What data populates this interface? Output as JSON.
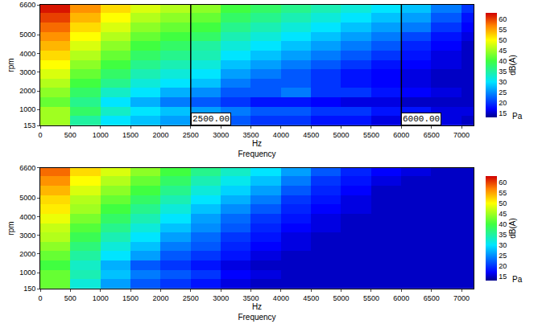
{
  "chart_data": [
    {
      "type": "heatmap",
      "xlabel": "Hz",
      "xlabel_sub": "Frequency",
      "ylabel": "rpm",
      "x": [
        250,
        750,
        1250,
        1750,
        2250,
        2750,
        3250,
        3750,
        4250,
        4750,
        5250,
        5750,
        6250,
        6750,
        7250
      ],
      "y": [
        400,
        900,
        1400,
        1900,
        2400,
        2900,
        3400,
        3900,
        4400,
        4900,
        5400,
        5900,
        6400
      ],
      "z": [
        [
          45,
          35,
          30,
          28,
          26,
          24,
          22,
          20,
          20,
          18,
          18,
          16,
          16,
          16,
          15
        ],
        [
          45,
          38,
          33,
          30,
          28,
          26,
          24,
          22,
          22,
          20,
          20,
          18,
          18,
          16,
          16
        ],
        [
          42,
          36,
          30,
          27,
          24,
          22,
          20,
          18,
          18,
          17,
          16,
          16,
          15,
          15,
          15
        ],
        [
          44,
          38,
          33,
          30,
          27,
          25,
          22,
          22,
          24,
          20,
          20,
          18,
          17,
          16,
          15
        ],
        [
          46,
          40,
          36,
          32,
          30,
          28,
          24,
          22,
          22,
          20,
          18,
          17,
          16,
          15,
          15
        ],
        [
          48,
          42,
          38,
          34,
          32,
          30,
          26,
          24,
          22,
          20,
          18,
          17,
          16,
          15,
          15
        ],
        [
          50,
          44,
          40,
          36,
          34,
          32,
          28,
          26,
          24,
          22,
          20,
          18,
          17,
          16,
          15
        ],
        [
          52,
          46,
          42,
          38,
          36,
          34,
          30,
          28,
          26,
          24,
          22,
          20,
          18,
          16,
          15
        ],
        [
          54,
          48,
          44,
          40,
          38,
          35,
          32,
          30,
          28,
          26,
          24,
          22,
          19,
          17,
          15
        ],
        [
          56,
          50,
          46,
          42,
          40,
          38,
          34,
          32,
          30,
          28,
          26,
          24,
          21,
          18,
          16
        ],
        [
          58,
          52,
          48,
          44,
          42,
          40,
          36,
          34,
          32,
          30,
          28,
          26,
          24,
          20,
          17
        ],
        [
          60,
          54,
          50,
          46,
          44,
          42,
          38,
          36,
          34,
          32,
          30,
          28,
          26,
          22,
          18
        ],
        [
          62,
          56,
          52,
          48,
          46,
          44,
          40,
          38,
          36,
          34,
          32,
          30,
          28,
          24,
          20
        ]
      ],
      "xlim": [
        0,
        7200
      ],
      "ylim": [
        153,
        6600
      ],
      "xticks": [
        0,
        500,
        1000,
        1500,
        2000,
        2500,
        3000,
        3500,
        4000,
        4500,
        5000,
        5500,
        6000,
        6500,
        7000
      ],
      "yticks": [
        153,
        1000,
        2000,
        3000,
        4000,
        5000,
        6600
      ],
      "colorbar": {
        "title": "dB(A)",
        "unit": "Pa",
        "range": [
          13,
          63
        ],
        "ticks": [
          15,
          20,
          25,
          30,
          35,
          40,
          45,
          50,
          55,
          60
        ]
      },
      "annotations": [
        {
          "x": 2500,
          "text": "2500.00"
        },
        {
          "x": 6000,
          "text": "6000.00"
        }
      ]
    },
    {
      "type": "heatmap",
      "xlabel": "Hz",
      "xlabel_sub": "Frequency",
      "ylabel": "rpm",
      "x": [
        250,
        750,
        1250,
        1750,
        2250,
        2750,
        3250,
        3750,
        4250,
        4750,
        5250,
        5750,
        6250,
        6750,
        7250
      ],
      "y": [
        400,
        900,
        1400,
        1900,
        2400,
        2900,
        3400,
        3900,
        4400,
        4900,
        5400,
        5900,
        6400
      ],
      "z": [
        [
          42,
          32,
          26,
          22,
          20,
          18,
          16,
          15,
          15,
          15,
          15,
          15,
          15,
          15,
          15
        ],
        [
          42,
          34,
          28,
          24,
          22,
          20,
          17,
          16,
          15,
          15,
          15,
          15,
          15,
          15,
          15
        ],
        [
          40,
          33,
          27,
          22,
          20,
          18,
          16,
          15,
          15,
          15,
          15,
          15,
          15,
          15,
          15
        ],
        [
          42,
          35,
          30,
          26,
          22,
          20,
          18,
          16,
          15,
          15,
          15,
          15,
          15,
          15,
          15
        ],
        [
          44,
          37,
          32,
          28,
          24,
          22,
          19,
          17,
          16,
          15,
          15,
          15,
          15,
          15,
          15
        ],
        [
          46,
          39,
          34,
          30,
          26,
          23,
          20,
          18,
          16,
          15,
          15,
          15,
          15,
          15,
          15
        ],
        [
          47,
          41,
          36,
          32,
          28,
          25,
          22,
          19,
          17,
          16,
          15,
          15,
          15,
          15,
          15
        ],
        [
          49,
          43,
          38,
          34,
          30,
          26,
          23,
          20,
          18,
          16,
          15,
          15,
          15,
          15,
          15
        ],
        [
          51,
          45,
          40,
          36,
          32,
          28,
          25,
          22,
          19,
          17,
          16,
          15,
          15,
          15,
          15
        ],
        [
          52,
          46,
          42,
          38,
          34,
          30,
          27,
          24,
          20,
          18,
          16,
          15,
          15,
          15,
          15
        ],
        [
          54,
          48,
          44,
          40,
          36,
          32,
          29,
          26,
          22,
          19,
          17,
          15,
          15,
          15,
          15
        ],
        [
          56,
          50,
          46,
          42,
          38,
          34,
          31,
          28,
          24,
          20,
          18,
          16,
          15,
          15,
          15
        ],
        [
          58,
          52,
          48,
          44,
          40,
          36,
          33,
          30,
          26,
          22,
          19,
          17,
          16,
          15,
          15
        ]
      ],
      "xlim": [
        0,
        7200
      ],
      "ylim": [
        150,
        6600
      ],
      "xticks": [
        0,
        500,
        1000,
        1500,
        2000,
        2500,
        3000,
        3500,
        4000,
        4500,
        5000,
        5500,
        6000,
        6500,
        7000
      ],
      "yticks": [
        150,
        1000,
        2000,
        3000,
        4000,
        5000,
        6600
      ],
      "colorbar": {
        "title": "dB(A)",
        "unit": "Pa",
        "range": [
          13,
          63
        ],
        "ticks": [
          15,
          20,
          25,
          30,
          35,
          40,
          45,
          50,
          55,
          60
        ]
      }
    }
  ]
}
